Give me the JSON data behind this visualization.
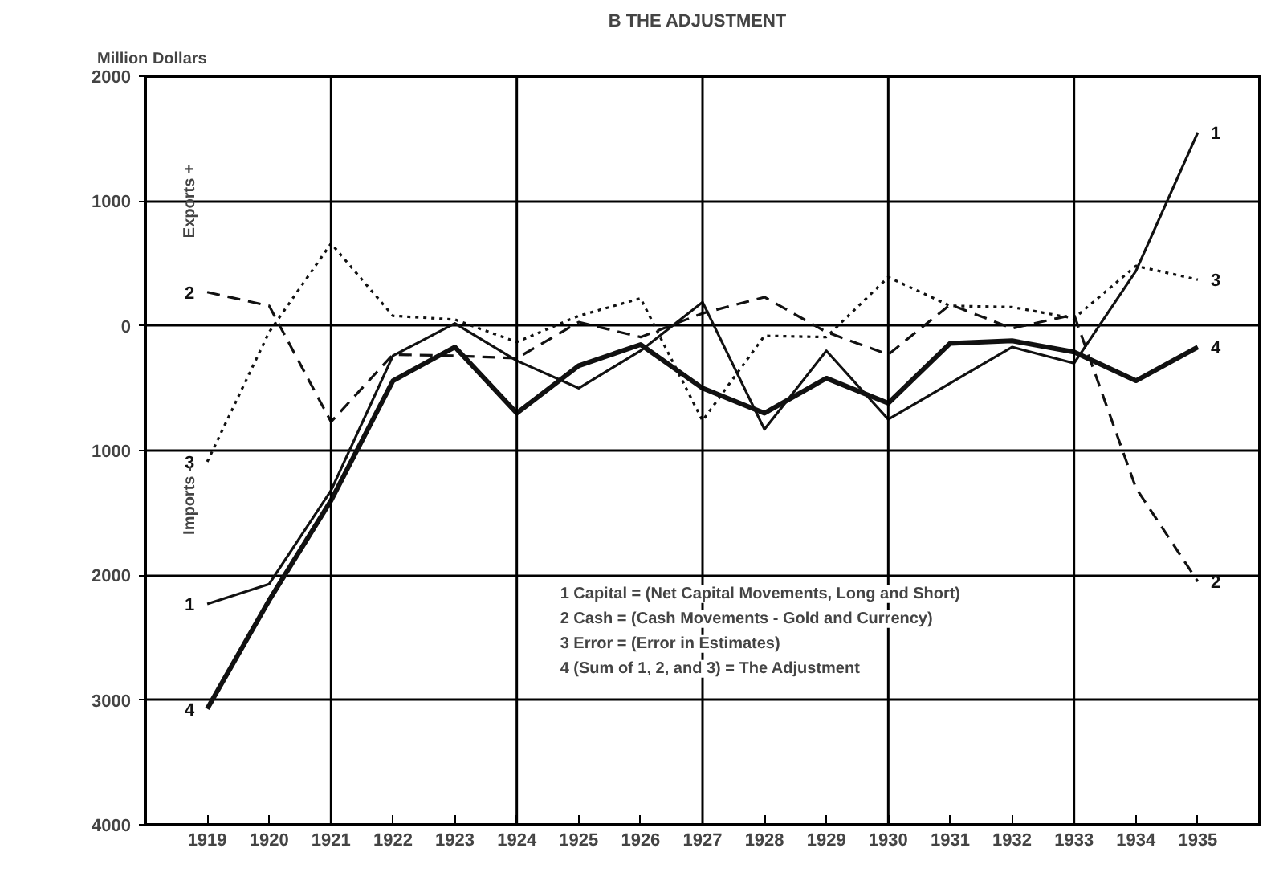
{
  "chart_data": {
    "type": "line",
    "title": "B   THE ADJUSTMENT",
    "ylabel": "Million Dollars",
    "x": [
      1919,
      1920,
      1921,
      1922,
      1923,
      1924,
      1925,
      1926,
      1927,
      1928,
      1929,
      1930,
      1931,
      1932,
      1933,
      1934,
      1935
    ],
    "series": [
      {
        "name": "1",
        "color": "#111111",
        "line_style": "solid",
        "values": [
          -2230,
          -2070,
          -1320,
          -240,
          20,
          -280,
          -500,
          -200,
          190,
          -830,
          -200,
          -750,
          -460,
          -170,
          -300,
          440,
          1550
        ]
      },
      {
        "name": "2",
        "color": "#111111",
        "line_style": "dashed",
        "values": [
          270,
          160,
          -770,
          -230,
          -240,
          -260,
          30,
          -90,
          100,
          230,
          -50,
          -230,
          170,
          -20,
          90,
          -1300,
          -2050
        ]
      },
      {
        "name": "3",
        "color": "#111111",
        "line_style": "dotted",
        "values": [
          -1090,
          -50,
          660,
          80,
          50,
          -130,
          80,
          220,
          -760,
          -80,
          -90,
          390,
          160,
          150,
          60,
          480,
          370
        ]
      },
      {
        "name": "4",
        "color": "#111111",
        "line_style": "solid",
        "values": [
          -3070,
          -2200,
          -1400,
          -440,
          -170,
          -700,
          -320,
          -150,
          -500,
          -700,
          -420,
          -620,
          -140,
          -120,
          -210,
          -440,
          -170
        ]
      }
    ],
    "xlim": [
      1918,
      1936
    ],
    "xticks": [
      1919,
      1920,
      1921,
      1922,
      1923,
      1924,
      1925,
      1926,
      1927,
      1928,
      1929,
      1930,
      1931,
      1932,
      1933,
      1934,
      1935
    ],
    "ylim": [
      -4000,
      2000
    ],
    "yticks": [
      {
        "value": -4000,
        "label": "4000"
      },
      {
        "value": -3000,
        "label": "3000"
      },
      {
        "value": -2000,
        "label": "2000"
      },
      {
        "value": -1000,
        "label": "1000"
      },
      0,
      1000,
      2000
    ],
    "grid": "y",
    "ref_lines": [
      {
        "axis": "x",
        "value": 1921
      },
      {
        "axis": "x",
        "value": 1924
      },
      {
        "axis": "x",
        "value": 1927
      },
      {
        "axis": "x",
        "value": 1930
      },
      {
        "axis": "x",
        "value": 1933
      }
    ],
    "annotations": [
      "Exports +",
      "Imports -",
      "1  Capital = (Net Capital Movements, Long and Short)",
      "2  Cash = (Cash Movements - Gold and Currency)",
      "3  Error = (Error in Estimates)",
      "4  (Sum of 1, 2, and 3) = The Adjustment"
    ]
  }
}
